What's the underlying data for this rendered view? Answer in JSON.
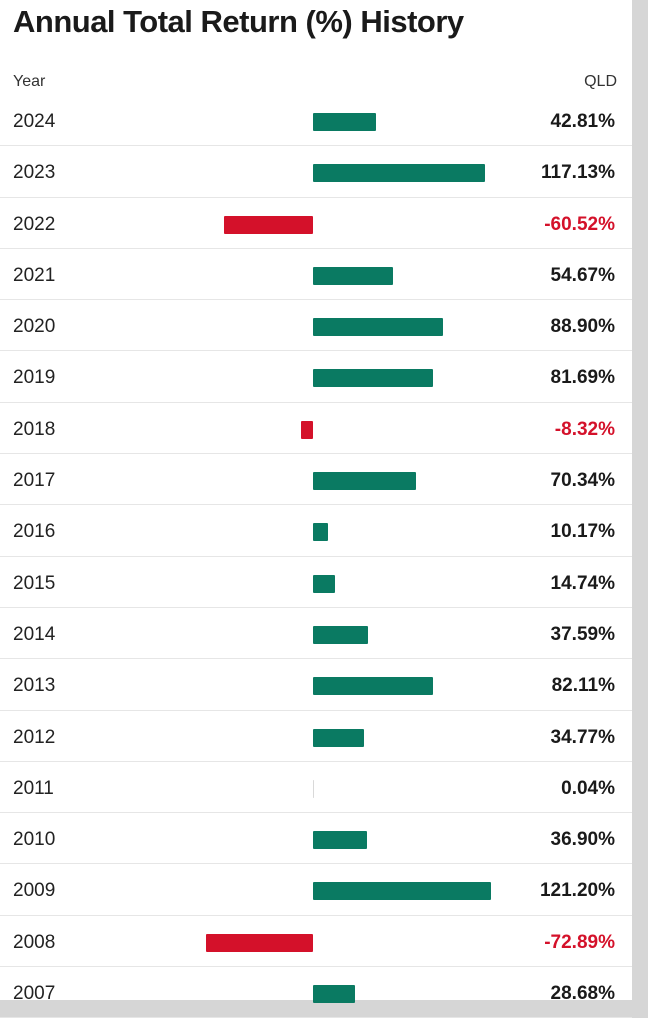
{
  "title": "Annual Total Return (%) History",
  "header": {
    "year_label": "Year",
    "fund_label": "QLD"
  },
  "colors": {
    "positive": "#0a7a62",
    "negative": "#d4112a"
  },
  "chart_data": {
    "type": "bar",
    "orientation": "horizontal",
    "title": "Annual Total Return (%) History",
    "categories": [
      "2024",
      "2023",
      "2022",
      "2021",
      "2020",
      "2019",
      "2018",
      "2017",
      "2016",
      "2015",
      "2014",
      "2013",
      "2012",
      "2011",
      "2010",
      "2009",
      "2008",
      "2007"
    ],
    "series": [
      {
        "name": "QLD",
        "values": [
          42.81,
          117.13,
          -60.52,
          54.67,
          88.9,
          81.69,
          -8.32,
          70.34,
          10.17,
          14.74,
          37.59,
          82.11,
          34.77,
          0.04,
          36.9,
          121.2,
          -72.89,
          28.68
        ]
      }
    ],
    "labels": [
      "42.81%",
      "117.13%",
      "-60.52%",
      "54.67%",
      "88.90%",
      "81.69%",
      "-8.32%",
      "70.34%",
      "10.17%",
      "14.74%",
      "37.59%",
      "82.11%",
      "34.77%",
      "0.04%",
      "36.90%",
      "121.20%",
      "-72.89%",
      "28.68%"
    ]
  }
}
